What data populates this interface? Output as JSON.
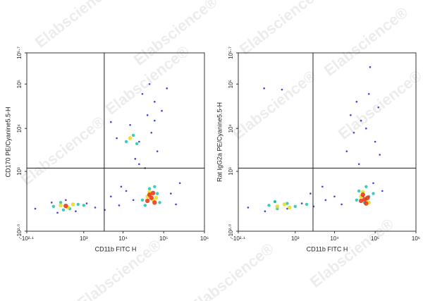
{
  "watermark": "Elabscience®",
  "chart_data": [
    {
      "type": "scatter",
      "scale": "biexponential",
      "x_label": "CD11b FITC H",
      "y_label": "CD170 PE/Cyanine5.5-H",
      "xlim": [
        -125.9,
        1000000
      ],
      "ylim": [
        -100,
        501187
      ],
      "xticks": [
        {
          "value": -125.9,
          "label": "-10²·¹"
        },
        {
          "value": 1000,
          "label": "10³"
        },
        {
          "value": 10000,
          "label": "10⁴"
        },
        {
          "value": 100000,
          "label": "10⁵"
        },
        {
          "value": 1000000,
          "label": "10⁶"
        }
      ],
      "yticks": [
        {
          "value": -100,
          "label": "-10²·⁰"
        },
        {
          "value": 1000,
          "label": "10³"
        },
        {
          "value": 10000,
          "label": "10⁴"
        },
        {
          "value": 100000,
          "label": "10⁵"
        },
        {
          "value": 501187,
          "label": "10⁵·⁷"
        }
      ],
      "quadrant": {
        "x": 3400,
        "y": 1200
      },
      "series": [
        {
          "color": "#2020d8",
          "x": [
            -40,
            80,
            150,
            300,
            600,
            1200,
            2000,
            3500,
            5000,
            8000,
            12000,
            18000,
            25000,
            150000,
            200000,
            40000,
            60000,
            20000,
            30000,
            50000,
            70000,
            90000,
            15000,
            45000,
            7000,
            25000,
            35000,
            9000,
            60000,
            250000,
            5000,
            120000
          ],
          "y": [
            60,
            120,
            30,
            150,
            40,
            110,
            70,
            50,
            200,
            90,
            300,
            150,
            1500,
            250,
            100,
            20000,
            40000,
            2000,
            60000,
            8000,
            3000,
            25000,
            12000,
            100000,
            6000,
            5000,
            1200,
            400,
            15000,
            500,
            14000,
            80000
          ]
        },
        {
          "color": "#18c4b0",
          "x": [
            100,
            200,
            400,
            700,
            1000,
            250,
            30000,
            45000,
            70000,
            35000,
            80000,
            12000,
            18000,
            22000,
            60000
          ],
          "y": [
            80,
            120,
            60,
            100,
            90,
            50,
            150,
            350,
            250,
            90,
            120,
            5000,
            7000,
            4500,
            400
          ]
        },
        {
          "color": "#e6dc20",
          "x": [
            200,
            350,
            500,
            40000,
            55000,
            45000,
            65000,
            15000
          ],
          "y": [
            90,
            70,
            100,
            200,
            150,
            280,
            180,
            6000
          ]
        },
        {
          "color": "#e83010",
          "x": [
            50000,
            60000,
            45000,
            55000,
            300,
            40000
          ],
          "y": [
            180,
            120,
            230,
            260,
            85,
            140
          ]
        }
      ]
    },
    {
      "type": "scatter",
      "scale": "biexponential",
      "x_label": "CD11b FITC H",
      "y_label": "Rat IgG2a PE/Cyanine5.5-H",
      "xlim": [
        -125.9,
        1000000
      ],
      "ylim": [
        -100,
        501187
      ],
      "xticks": [
        {
          "value": -125.9,
          "label": "-10²·¹"
        },
        {
          "value": 1000,
          "label": "10³"
        },
        {
          "value": 10000,
          "label": "10⁴"
        },
        {
          "value": 100000,
          "label": "10⁵"
        },
        {
          "value": 1000000,
          "label": "10⁶"
        }
      ],
      "yticks": [
        {
          "value": -100,
          "label": "-10²·⁰"
        },
        {
          "value": 1000,
          "label": "10³"
        },
        {
          "value": 10000,
          "label": "10⁴"
        },
        {
          "value": 100000,
          "label": "10⁵"
        },
        {
          "value": 501187,
          "label": "10⁵·⁷"
        }
      ],
      "quadrant": {
        "x": 2900,
        "y": 1200
      },
      "series": [
        {
          "color": "#2020d8",
          "x": [
            -30,
            100,
            250,
            600,
            1500,
            3000,
            6000,
            10000,
            15000,
            20000,
            25000,
            30000,
            35000,
            45000,
            70000,
            100000,
            130000,
            150000,
            40000,
            60000,
            75000,
            50000,
            90000,
            5000,
            120000,
            90,
            420,
            2500
          ],
          "y": [
            70,
            40,
            130,
            60,
            110,
            80,
            150,
            200,
            100,
            3000,
            20000,
            8000,
            40000,
            15000,
            60000,
            5000,
            2500,
            300,
            1500,
            10000,
            240000,
            200,
            500,
            400,
            30000,
            80000,
            75000,
            250
          ]
        },
        {
          "color": "#18c4b0",
          "x": [
            150,
            300,
            600,
            1000,
            2000,
            40000,
            55000,
            70000,
            35000,
            90000,
            60000,
            250
          ],
          "y": [
            90,
            60,
            110,
            80,
            100,
            300,
            120,
            200,
            150,
            250,
            400,
            130
          ]
        },
        {
          "color": "#e6dc20",
          "x": [
            300,
            500,
            700,
            45000,
            60000,
            50000,
            70000
          ],
          "y": [
            80,
            100,
            70,
            200,
            150,
            280,
            120
          ]
        },
        {
          "color": "#e83010",
          "x": [
            55000,
            50000,
            65000,
            60000,
            45000
          ],
          "y": [
            160,
            230,
            180,
            110,
            140
          ]
        }
      ]
    }
  ]
}
